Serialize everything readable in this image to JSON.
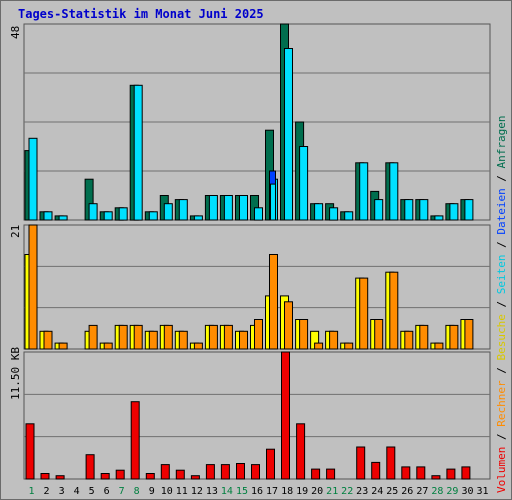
{
  "title": "Tages-Statistik im Monat Juni 2025",
  "colors": {
    "anfragen": "#006e4e",
    "dateien": "#00e0ff",
    "seiten": "#0040ff",
    "besuche": "#ffff00",
    "rechner": "#ff8c00",
    "volumen": "#ee0000",
    "weekend_label": "#008040",
    "weekday_label": "#000000"
  },
  "chart_data": [
    {
      "type": "bar",
      "title": "Tages-Statistik im Monat Juni 2025",
      "ylabel": "48",
      "ylim": [
        0,
        48
      ],
      "categories": [
        "1",
        "2",
        "3",
        "4",
        "5",
        "6",
        "7",
        "8",
        "9",
        "10",
        "11",
        "12",
        "13",
        "14",
        "15",
        "16",
        "17",
        "18",
        "19",
        "20",
        "21",
        "22",
        "23",
        "24",
        "25",
        "26",
        "27",
        "28",
        "29",
        "30",
        "31"
      ],
      "series": [
        {
          "name": "Anfragen",
          "values": [
            17,
            2,
            1,
            0,
            10,
            2,
            3,
            33,
            2,
            6,
            5,
            1,
            6,
            6,
            6,
            6,
            22,
            48,
            24,
            4,
            4,
            2,
            14,
            7,
            14,
            5,
            5,
            1,
            4,
            5,
            0
          ]
        },
        {
          "name": "Dateien",
          "values": [
            20,
            2,
            1,
            0,
            4,
            2,
            3,
            33,
            2,
            4,
            5,
            1,
            6,
            6,
            6,
            3,
            10,
            42,
            18,
            4,
            3,
            2,
            14,
            5,
            14,
            5,
            5,
            1,
            4,
            5,
            0
          ]
        },
        {
          "name": "Seiten",
          "values": [
            0,
            0,
            0,
            0,
            0,
            0,
            0,
            0,
            0,
            0,
            0,
            0,
            0,
            0,
            0,
            0,
            12,
            0,
            0,
            0,
            0,
            0,
            0,
            0,
            0,
            0,
            0,
            0,
            0,
            0,
            0
          ]
        }
      ]
    },
    {
      "type": "bar",
      "ylabel": "21",
      "ylim": [
        0,
        21
      ],
      "categories": [
        "1",
        "2",
        "3",
        "4",
        "5",
        "6",
        "7",
        "8",
        "9",
        "10",
        "11",
        "12",
        "13",
        "14",
        "15",
        "16",
        "17",
        "18",
        "19",
        "20",
        "21",
        "22",
        "23",
        "24",
        "25",
        "26",
        "27",
        "28",
        "29",
        "30",
        "31"
      ],
      "series": [
        {
          "name": "Besuche",
          "values": [
            16,
            3,
            1,
            0,
            3,
            1,
            4,
            4,
            3,
            4,
            3,
            1,
            4,
            4,
            3,
            4,
            9,
            9,
            5,
            3,
            3,
            1,
            12,
            5,
            13,
            3,
            4,
            1,
            4,
            5,
            0
          ]
        },
        {
          "name": "Rechner",
          "values": [
            21,
            3,
            1,
            0,
            4,
            1,
            4,
            4,
            3,
            4,
            3,
            1,
            4,
            4,
            3,
            5,
            16,
            8,
            5,
            1,
            3,
            1,
            12,
            5,
            13,
            3,
            4,
            1,
            4,
            5,
            0
          ]
        }
      ]
    },
    {
      "type": "bar",
      "ylabel": "11.50 KB",
      "ylim": [
        0,
        11.5
      ],
      "categories": [
        "1",
        "2",
        "3",
        "4",
        "5",
        "6",
        "7",
        "8",
        "9",
        "10",
        "11",
        "12",
        "13",
        "14",
        "15",
        "16",
        "17",
        "18",
        "19",
        "20",
        "21",
        "22",
        "23",
        "24",
        "25",
        "26",
        "27",
        "28",
        "29",
        "30",
        "31"
      ],
      "series": [
        {
          "name": "Volumen",
          "values": [
            5.0,
            0.5,
            0.3,
            0,
            2.2,
            0.5,
            0.8,
            7.0,
            0.5,
            1.3,
            0.8,
            0.3,
            1.3,
            1.3,
            1.4,
            1.3,
            2.7,
            11.5,
            5.0,
            0.9,
            0.9,
            0,
            2.9,
            1.5,
            2.9,
            1.1,
            1.1,
            0.3,
            0.9,
            1.1,
            0
          ]
        }
      ]
    }
  ],
  "legend": {
    "volumen": "Volumen",
    "rechner": "Rechner",
    "besuche": "Besuche",
    "seiten": "Seiten",
    "dateien": "Dateien",
    "anfragen": "Anfragen",
    "sep": "/"
  }
}
